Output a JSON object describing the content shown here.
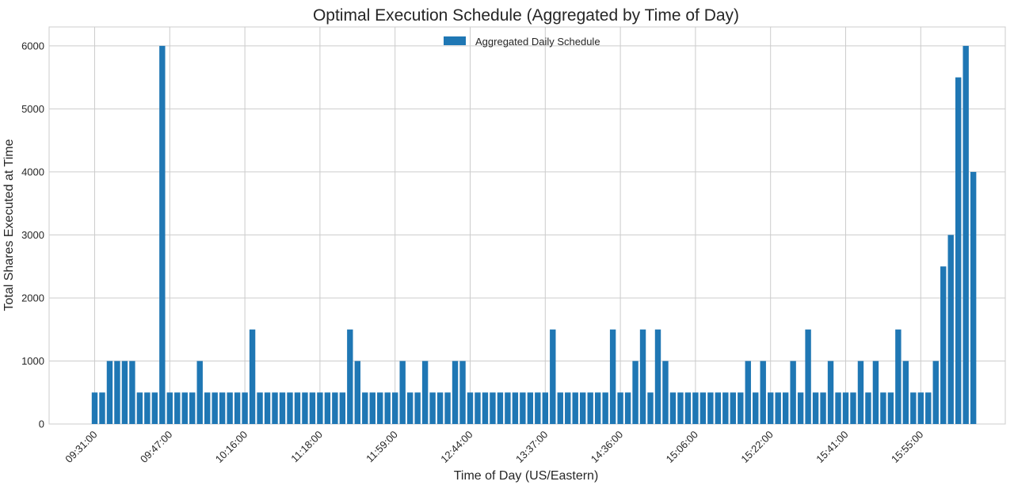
{
  "chart_data": {
    "type": "bar",
    "title": "Optimal Execution Schedule (Aggregated by Time of Day)",
    "xlabel": "Time of Day (US/Eastern)",
    "ylabel": "Total Shares Executed at Time",
    "ylim": [
      0,
      6300
    ],
    "yticks": [
      0,
      1000,
      2000,
      3000,
      4000,
      5000,
      6000
    ],
    "grid": true,
    "legend_position": "top-center",
    "series": [
      {
        "name": "Aggregated Daily Schedule",
        "color": "#1f77b4",
        "values": [
          500,
          500,
          1000,
          1000,
          1000,
          1000,
          500,
          500,
          500,
          6000,
          500,
          500,
          500,
          500,
          1000,
          500,
          500,
          500,
          500,
          500,
          500,
          1500,
          500,
          500,
          500,
          500,
          500,
          500,
          500,
          500,
          500,
          500,
          500,
          500,
          1500,
          1000,
          500,
          500,
          500,
          500,
          500,
          1000,
          500,
          500,
          1000,
          500,
          500,
          500,
          1000,
          1000,
          500,
          500,
          500,
          500,
          500,
          500,
          500,
          500,
          500,
          500,
          500,
          1500,
          500,
          500,
          500,
          500,
          500,
          500,
          500,
          1500,
          500,
          500,
          1000,
          1500,
          500,
          1500,
          1000,
          500,
          500,
          500,
          500,
          500,
          500,
          500,
          500,
          500,
          500,
          1000,
          500,
          1000,
          500,
          500,
          500,
          1000,
          500,
          1500,
          500,
          500,
          1000,
          500,
          500,
          500,
          1000,
          500,
          1000,
          500,
          500,
          1500,
          1000,
          500,
          500,
          500,
          1000,
          2500,
          3000,
          5500,
          6000,
          4000
        ]
      }
    ],
    "x_tick_labels": [
      {
        "index": 0,
        "label": "09:31:00"
      },
      {
        "index": 10,
        "label": "09:47:00"
      },
      {
        "index": 20,
        "label": "10:16:00"
      },
      {
        "index": 30,
        "label": "11:18:00"
      },
      {
        "index": 40,
        "label": "11:59:00"
      },
      {
        "index": 50,
        "label": "12:44:00"
      },
      {
        "index": 60,
        "label": "13:37:00"
      },
      {
        "index": 70,
        "label": "14:36:00"
      },
      {
        "index": 80,
        "label": "15:06:00"
      },
      {
        "index": 90,
        "label": "15:22:00"
      },
      {
        "index": 100,
        "label": "15:41:00"
      },
      {
        "index": 110,
        "label": "15:55:00"
      }
    ]
  }
}
